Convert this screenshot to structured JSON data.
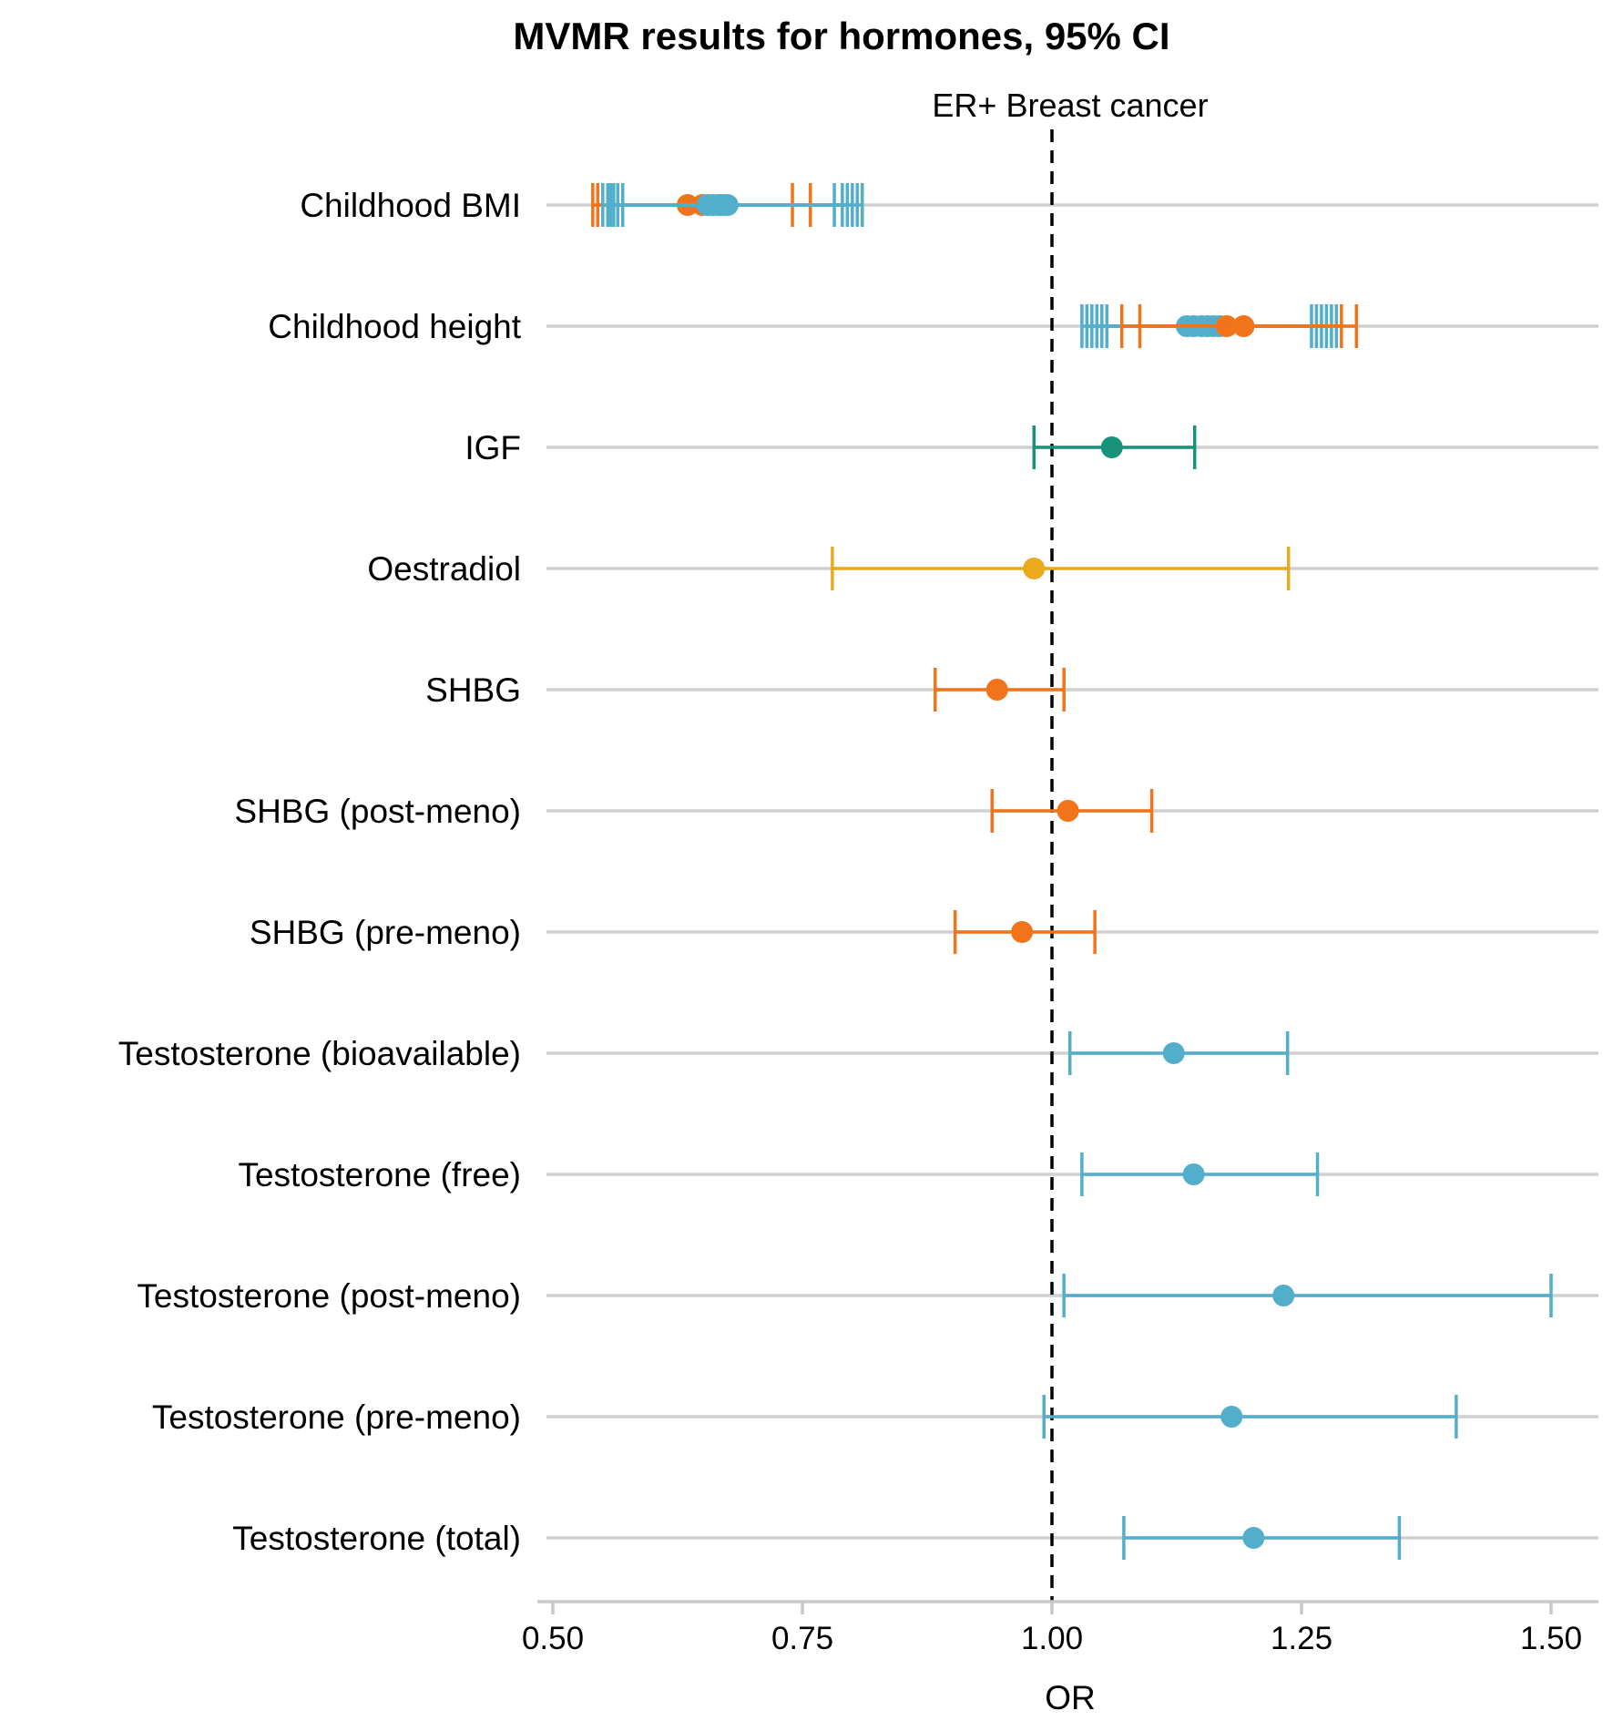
{
  "chart_data": {
    "type": "forest",
    "title": "MVMR results for hormones, 95% CI",
    "facet_label": "ER+ Breast cancer",
    "xlabel": "OR",
    "ylabel": "",
    "xlim": [
      0.5,
      1.55
    ],
    "xticks": [
      0.5,
      0.75,
      1.0,
      1.25,
      1.5
    ],
    "xtick_labels": [
      "0.50",
      "0.75",
      "1.00",
      "1.25",
      "1.50"
    ],
    "reference_line": 1.0,
    "grid": "horizontal",
    "legend": "none",
    "colors": {
      "orange": "#f1731a",
      "blue": "#52aecb",
      "green": "#18937a",
      "gold": "#ebaa1d",
      "grid": "#d0d0d0",
      "axis": "#c8c8c8"
    },
    "categories": [
      "Childhood BMI",
      "Childhood height",
      "IGF",
      "Oestradiol",
      "SHBG",
      "SHBG (post-meno)",
      "SHBG (pre-meno)",
      "Testosterone (bioavailable)",
      "Testosterone (free)",
      "Testosterone (post-meno)",
      "Testosterone (pre-meno)",
      "Testosterone (total)"
    ],
    "points": [
      {
        "exposure": "Childhood BMI",
        "or": 0.635,
        "lo": 0.54,
        "hi": 0.74,
        "color": "orange"
      },
      {
        "exposure": "Childhood BMI",
        "or": 0.65,
        "lo": 0.545,
        "hi": 0.758,
        "color": "orange"
      },
      {
        "exposure": "Childhood BMI",
        "or": 0.655,
        "lo": 0.55,
        "hi": 0.782,
        "color": "blue"
      },
      {
        "exposure": "Childhood BMI",
        "or": 0.66,
        "lo": 0.555,
        "hi": 0.79,
        "color": "blue"
      },
      {
        "exposure": "Childhood BMI",
        "or": 0.665,
        "lo": 0.558,
        "hi": 0.795,
        "color": "blue"
      },
      {
        "exposure": "Childhood BMI",
        "or": 0.668,
        "lo": 0.561,
        "hi": 0.8,
        "color": "blue"
      },
      {
        "exposure": "Childhood BMI",
        "or": 0.672,
        "lo": 0.565,
        "hi": 0.805,
        "color": "blue"
      },
      {
        "exposure": "Childhood BMI",
        "or": 0.675,
        "lo": 0.57,
        "hi": 0.81,
        "color": "blue"
      },
      {
        "exposure": "Childhood height",
        "or": 1.135,
        "lo": 1.03,
        "hi": 1.26,
        "color": "blue"
      },
      {
        "exposure": "Childhood height",
        "or": 1.142,
        "lo": 1.035,
        "hi": 1.265,
        "color": "blue"
      },
      {
        "exposure": "Childhood height",
        "or": 1.15,
        "lo": 1.04,
        "hi": 1.27,
        "color": "blue"
      },
      {
        "exposure": "Childhood height",
        "or": 1.156,
        "lo": 1.045,
        "hi": 1.275,
        "color": "blue"
      },
      {
        "exposure": "Childhood height",
        "or": 1.162,
        "lo": 1.05,
        "hi": 1.28,
        "color": "blue"
      },
      {
        "exposure": "Childhood height",
        "or": 1.168,
        "lo": 1.055,
        "hi": 1.285,
        "color": "blue"
      },
      {
        "exposure": "Childhood height",
        "or": 1.175,
        "lo": 1.07,
        "hi": 1.29,
        "color": "orange"
      },
      {
        "exposure": "Childhood height",
        "or": 1.192,
        "lo": 1.088,
        "hi": 1.305,
        "color": "orange"
      },
      {
        "exposure": "IGF",
        "or": 1.06,
        "lo": 0.982,
        "hi": 1.143,
        "color": "green"
      },
      {
        "exposure": "Oestradiol",
        "or": 0.982,
        "lo": 0.78,
        "hi": 1.237,
        "color": "gold"
      },
      {
        "exposure": "SHBG",
        "or": 0.945,
        "lo": 0.883,
        "hi": 1.012,
        "color": "orange"
      },
      {
        "exposure": "SHBG (post-meno)",
        "or": 1.016,
        "lo": 0.94,
        "hi": 1.1,
        "color": "orange"
      },
      {
        "exposure": "SHBG (pre-meno)",
        "or": 0.97,
        "lo": 0.903,
        "hi": 1.043,
        "color": "orange"
      },
      {
        "exposure": "Testosterone (bioavailable)",
        "or": 1.122,
        "lo": 1.018,
        "hi": 1.236,
        "color": "blue"
      },
      {
        "exposure": "Testosterone (free)",
        "or": 1.142,
        "lo": 1.03,
        "hi": 1.266,
        "color": "blue"
      },
      {
        "exposure": "Testosterone (post-meno)",
        "or": 1.232,
        "lo": 1.012,
        "hi": 1.5,
        "color": "blue"
      },
      {
        "exposure": "Testosterone (pre-meno)",
        "or": 1.18,
        "lo": 0.992,
        "hi": 1.405,
        "color": "blue"
      },
      {
        "exposure": "Testosterone (total)",
        "or": 1.202,
        "lo": 1.072,
        "hi": 1.348,
        "color": "blue"
      }
    ]
  }
}
